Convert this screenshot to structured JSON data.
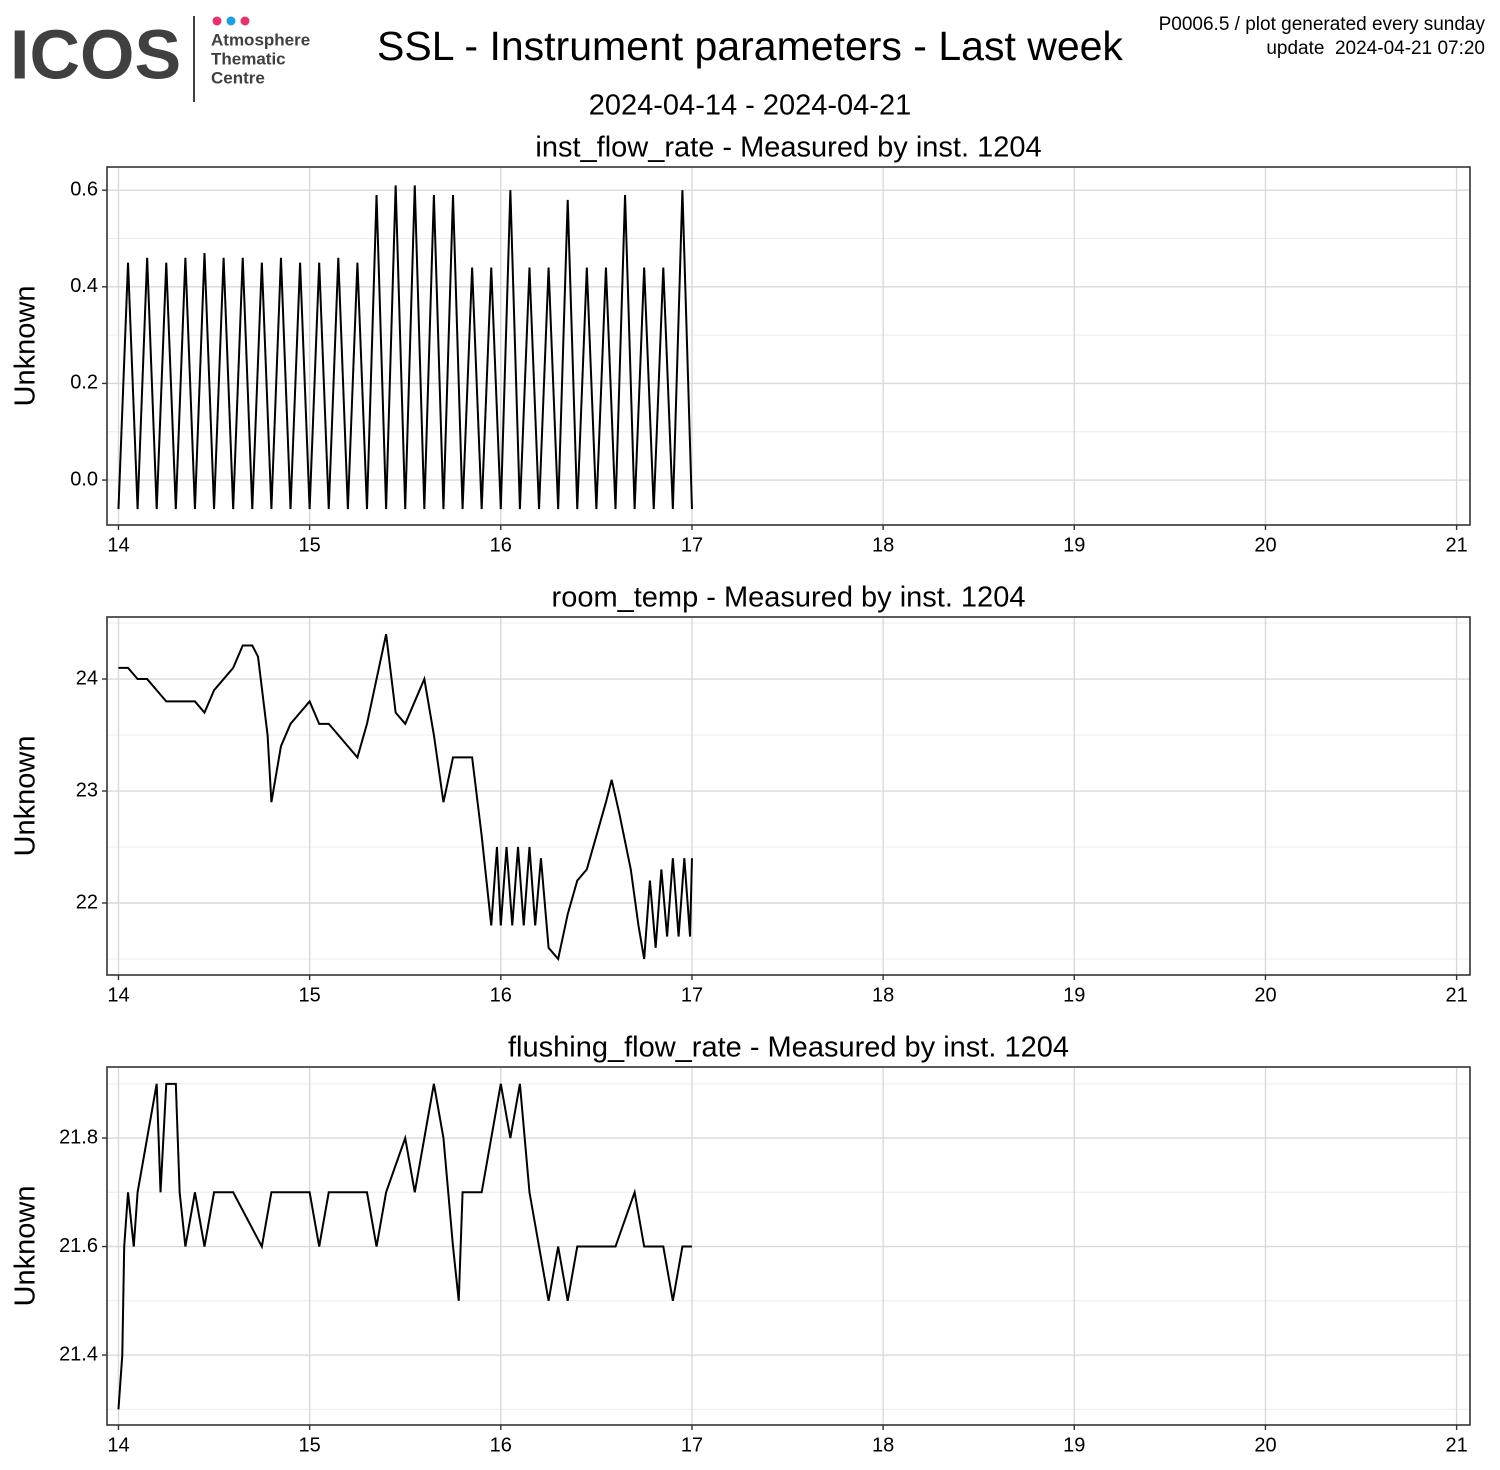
{
  "header": {
    "logo_text": "ICOS",
    "logo_lines": [
      "Atmosphere",
      "Thematic",
      "Centre"
    ],
    "title": "SSL - Instrument parameters - Last week",
    "subtitle": "2024-04-14 - 2024-04-21",
    "note": [
      "P0006.5 / plot generated every sunday",
      "update  2024-04-21 07:20"
    ]
  },
  "chart_data": [
    {
      "type": "line",
      "title": "inst_flow_rate - Measured by inst. 1204",
      "ylabel": "Unknown",
      "xlim": [
        13.94,
        21.07
      ],
      "xticks": [
        14,
        15,
        16,
        17,
        18,
        19,
        20,
        21
      ],
      "ylim": [
        -0.093,
        0.648
      ],
      "yticks": [
        {
          "value": 0,
          "label": "0.0"
        },
        0.2,
        0.4,
        0.6
      ],
      "grid": true,
      "x": [
        14.0,
        14.05,
        14.1,
        14.15,
        14.2,
        14.25,
        14.3,
        14.35,
        14.4,
        14.45,
        14.5,
        14.55,
        14.6,
        14.65,
        14.7,
        14.75,
        14.8,
        14.85,
        14.9,
        14.95,
        15.0,
        15.05,
        15.1,
        15.15,
        15.2,
        15.25,
        15.3,
        15.35,
        15.4,
        15.45,
        15.5,
        15.55,
        15.6,
        15.65,
        15.7,
        15.75,
        15.8,
        15.85,
        15.9,
        15.95,
        16.0,
        16.05,
        16.1,
        16.15,
        16.2,
        16.25,
        16.3,
        16.35,
        16.4,
        16.45,
        16.5,
        16.55,
        16.6,
        16.65,
        16.7,
        16.75,
        16.8,
        16.85,
        16.9,
        16.95,
        17.0
      ],
      "series": [
        {
          "color": "#000000",
          "values": [
            -0.06,
            0.45,
            -0.06,
            0.46,
            -0.06,
            0.45,
            -0.06,
            0.46,
            -0.06,
            0.47,
            -0.06,
            0.46,
            -0.06,
            0.46,
            -0.06,
            0.45,
            -0.06,
            0.46,
            -0.06,
            0.45,
            -0.06,
            0.45,
            -0.06,
            0.46,
            -0.06,
            0.45,
            -0.06,
            0.59,
            -0.06,
            0.61,
            -0.06,
            0.61,
            -0.06,
            0.59,
            -0.06,
            0.59,
            -0.06,
            0.44,
            -0.06,
            0.44,
            -0.06,
            0.6,
            -0.06,
            0.44,
            -0.06,
            0.44,
            -0.06,
            0.58,
            -0.06,
            0.44,
            -0.06,
            0.44,
            -0.06,
            0.59,
            -0.06,
            0.44,
            -0.06,
            0.44,
            -0.06,
            0.6,
            -0.06
          ]
        }
      ]
    },
    {
      "type": "line",
      "title": "room_temp - Measured by inst. 1204",
      "ylabel": "Unknown",
      "xlim": [
        13.94,
        21.07
      ],
      "xticks": [
        14,
        15,
        16,
        17,
        18,
        19,
        20,
        21
      ],
      "ylim": [
        21.357,
        24.554
      ],
      "yticks": [
        22,
        23,
        24
      ],
      "grid": true,
      "x": [
        14.0,
        14.05,
        14.1,
        14.15,
        14.2,
        14.25,
        14.3,
        14.4,
        14.45,
        14.5,
        14.55,
        14.6,
        14.65,
        14.7,
        14.73,
        14.78,
        14.8,
        14.85,
        14.9,
        14.95,
        15.0,
        15.05,
        15.1,
        15.15,
        15.2,
        15.25,
        15.3,
        15.35,
        15.4,
        15.45,
        15.5,
        15.55,
        15.6,
        15.65,
        15.7,
        15.75,
        15.85,
        15.9,
        15.95,
        15.98,
        16.0,
        16.03,
        16.06,
        16.09,
        16.12,
        16.15,
        16.18,
        16.21,
        16.25,
        16.3,
        16.35,
        16.4,
        16.45,
        16.5,
        16.55,
        16.58,
        16.62,
        16.68,
        16.72,
        16.75,
        16.78,
        16.81,
        16.84,
        16.87,
        16.9,
        16.93,
        16.96,
        16.99,
        17.0
      ],
      "series": [
        {
          "color": "#000000",
          "values": [
            24.1,
            24.1,
            24.0,
            24.0,
            23.9,
            23.8,
            23.8,
            23.8,
            23.7,
            23.9,
            24.0,
            24.1,
            24.3,
            24.3,
            24.2,
            23.5,
            22.9,
            23.4,
            23.6,
            23.7,
            23.8,
            23.6,
            23.6,
            23.5,
            23.4,
            23.3,
            23.6,
            24.0,
            24.4,
            23.7,
            23.6,
            23.8,
            24.0,
            23.5,
            22.9,
            23.3,
            23.3,
            22.6,
            21.8,
            22.5,
            21.8,
            22.5,
            21.8,
            22.5,
            21.8,
            22.5,
            21.8,
            22.4,
            21.6,
            21.5,
            21.9,
            22.2,
            22.3,
            22.6,
            22.9,
            23.1,
            22.8,
            22.3,
            21.8,
            21.5,
            22.2,
            21.6,
            22.3,
            21.7,
            22.4,
            21.7,
            22.4,
            21.7,
            22.4
          ]
        }
      ]
    },
    {
      "type": "line",
      "title": "flushing_flow_rate - Measured by inst. 1204",
      "ylabel": "Unknown",
      "xlim": [
        13.94,
        21.07
      ],
      "xticks": [
        14,
        15,
        16,
        17,
        18,
        19,
        20,
        21
      ],
      "ylim": [
        21.271,
        21.931
      ],
      "yticks": [
        21.4,
        21.6,
        21.8
      ],
      "grid": true,
      "x": [
        14.0,
        14.02,
        14.03,
        14.05,
        14.08,
        14.1,
        14.15,
        14.2,
        14.22,
        14.25,
        14.3,
        14.32,
        14.35,
        14.4,
        14.45,
        14.5,
        14.6,
        14.75,
        14.8,
        15.0,
        15.05,
        15.1,
        15.3,
        15.35,
        15.4,
        15.5,
        15.55,
        15.6,
        15.65,
        15.7,
        15.75,
        15.78,
        15.8,
        15.9,
        15.95,
        16.0,
        16.05,
        16.1,
        16.15,
        16.2,
        16.25,
        16.3,
        16.35,
        16.4,
        16.5,
        16.6,
        16.7,
        16.75,
        16.85,
        16.9,
        16.95,
        17.0
      ],
      "series": [
        {
          "color": "#000000",
          "values": [
            21.3,
            21.4,
            21.6,
            21.7,
            21.6,
            21.7,
            21.8,
            21.9,
            21.7,
            21.9,
            21.9,
            21.7,
            21.6,
            21.7,
            21.6,
            21.7,
            21.7,
            21.6,
            21.7,
            21.7,
            21.6,
            21.7,
            21.7,
            21.6,
            21.7,
            21.8,
            21.7,
            21.8,
            21.9,
            21.8,
            21.6,
            21.5,
            21.7,
            21.7,
            21.8,
            21.9,
            21.8,
            21.9,
            21.7,
            21.6,
            21.5,
            21.6,
            21.5,
            21.6,
            21.6,
            21.6,
            21.7,
            21.6,
            21.6,
            21.5,
            21.6,
            21.6
          ]
        }
      ]
    }
  ]
}
